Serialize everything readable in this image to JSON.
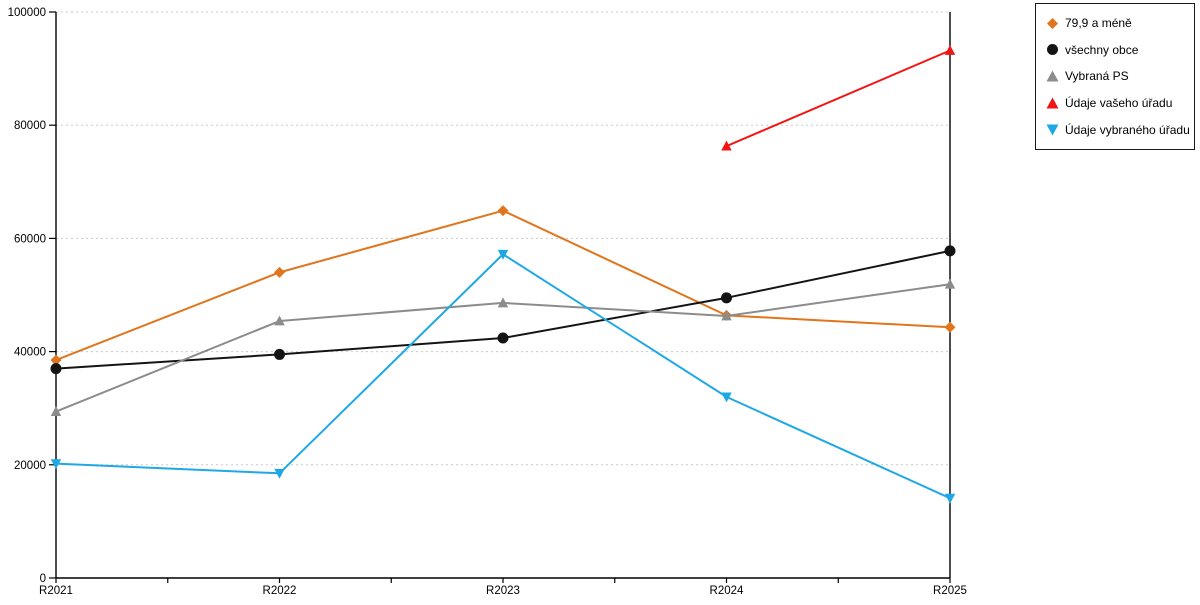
{
  "chart_data": {
    "type": "line",
    "title": "",
    "xlabel": "",
    "ylabel": "",
    "categories": [
      "R2021",
      "R2022",
      "R2023",
      "R2024",
      "R2025"
    ],
    "series": [
      {
        "name": "79,9 a méně",
        "color": "#e0751c",
        "marker": "diamond",
        "values": [
          38500,
          54000,
          64900,
          46400,
          44300
        ]
      },
      {
        "name": "všechny obce",
        "color": "#141414",
        "marker": "circle",
        "values": [
          37000,
          39500,
          42400,
          49500,
          57800
        ]
      },
      {
        "name": "Vybraná PS",
        "color": "#8c8c8c",
        "marker": "triangle-up",
        "values": [
          29400,
          45400,
          48600,
          46300,
          51900
        ]
      },
      {
        "name": "Údaje vašeho úřadu",
        "color": "#f31414",
        "marker": "triangle-up",
        "values": [
          null,
          null,
          null,
          76300,
          93200
        ]
      },
      {
        "name": "Údaje vybraného úřadu",
        "color": "#1fa8e6",
        "marker": "triangle-down",
        "values": [
          20200,
          18500,
          57200,
          32000,
          14100
        ]
      }
    ],
    "ylim": [
      0,
      100000
    ],
    "ytick_step": 20000,
    "ytick_labels": [
      "0",
      "20000",
      "40000",
      "60000",
      "80000",
      "100000"
    ],
    "grid": true,
    "grid_color": "#c9c9c9",
    "axis_color": "#000000",
    "legend_position": "top-right"
  }
}
